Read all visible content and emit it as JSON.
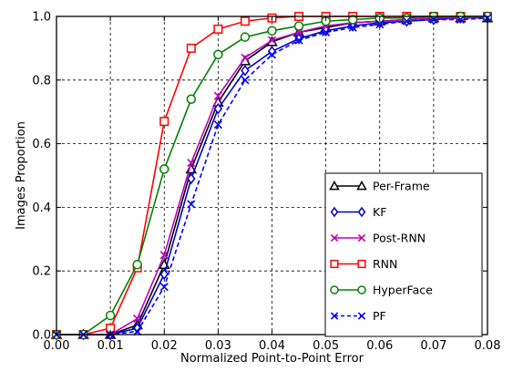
{
  "chart_data": {
    "type": "line",
    "title": "",
    "xlabel": "Normalized Point-to-Point Error",
    "ylabel": "Images Proportion",
    "xlim": [
      0.0,
      0.08
    ],
    "ylim": [
      0.0,
      1.0
    ],
    "xticks": [
      0.0,
      0.01,
      0.02,
      0.03,
      0.04,
      0.05,
      0.06,
      0.07,
      0.08
    ],
    "yticks": [
      0.0,
      0.2,
      0.4,
      0.6,
      0.8,
      1.0
    ],
    "xtick_labels": [
      "0.00",
      "0.01",
      "0.02",
      "0.03",
      "0.04",
      "0.05",
      "0.06",
      "0.07",
      "0.08"
    ],
    "ytick_labels": [
      "0.0",
      "0.2",
      "0.4",
      "0.6",
      "0.8",
      "1.0"
    ],
    "grid": true,
    "legend_position": "lower-right",
    "x": [
      0.0,
      0.005,
      0.01,
      0.015,
      0.02,
      0.025,
      0.03,
      0.035,
      0.04,
      0.045,
      0.05,
      0.055,
      0.06,
      0.065,
      0.07,
      0.075,
      0.08
    ],
    "series": [
      {
        "name": "Per-Frame",
        "color": "#000000",
        "marker": "triangle",
        "dashed": false,
        "values": [
          0.0,
          0.0,
          0.0,
          0.03,
          0.22,
          0.52,
          0.73,
          0.86,
          0.92,
          0.95,
          0.965,
          0.98,
          0.985,
          0.99,
          0.995,
          0.995,
          0.995
        ]
      },
      {
        "name": "KF",
        "color": "#0000cc",
        "marker": "diamond",
        "dashed": false,
        "values": [
          0.0,
          0.0,
          0.0,
          0.02,
          0.19,
          0.49,
          0.71,
          0.83,
          0.89,
          0.93,
          0.955,
          0.97,
          0.98,
          0.985,
          0.99,
          0.995,
          0.995
        ]
      },
      {
        "name": "Post-RNN",
        "color": "#bf00bf",
        "marker": "x",
        "dashed": false,
        "values": [
          0.0,
          0.0,
          0.0,
          0.05,
          0.25,
          0.54,
          0.75,
          0.87,
          0.925,
          0.95,
          0.97,
          0.98,
          0.985,
          0.99,
          0.995,
          0.995,
          0.995
        ]
      },
      {
        "name": "RNN",
        "color": "#ff0000",
        "marker": "square",
        "dashed": false,
        "values": [
          0.0,
          0.0,
          0.02,
          0.21,
          0.67,
          0.9,
          0.96,
          0.985,
          0.995,
          1.0,
          1.0,
          1.0,
          1.0,
          1.0,
          1.0,
          1.0,
          1.0
        ]
      },
      {
        "name": "HyperFace",
        "color": "#008000",
        "marker": "circle",
        "dashed": false,
        "values": [
          0.0,
          0.0,
          0.06,
          0.22,
          0.52,
          0.74,
          0.88,
          0.935,
          0.955,
          0.97,
          0.985,
          0.99,
          0.995,
          0.995,
          1.0,
          1.0,
          1.0
        ]
      },
      {
        "name": "PF",
        "color": "#0000ff",
        "marker": "x",
        "dashed": true,
        "values": [
          0.0,
          0.0,
          0.0,
          0.01,
          0.15,
          0.41,
          0.66,
          0.8,
          0.88,
          0.925,
          0.95,
          0.965,
          0.975,
          0.985,
          0.99,
          0.99,
          0.995
        ]
      }
    ]
  }
}
